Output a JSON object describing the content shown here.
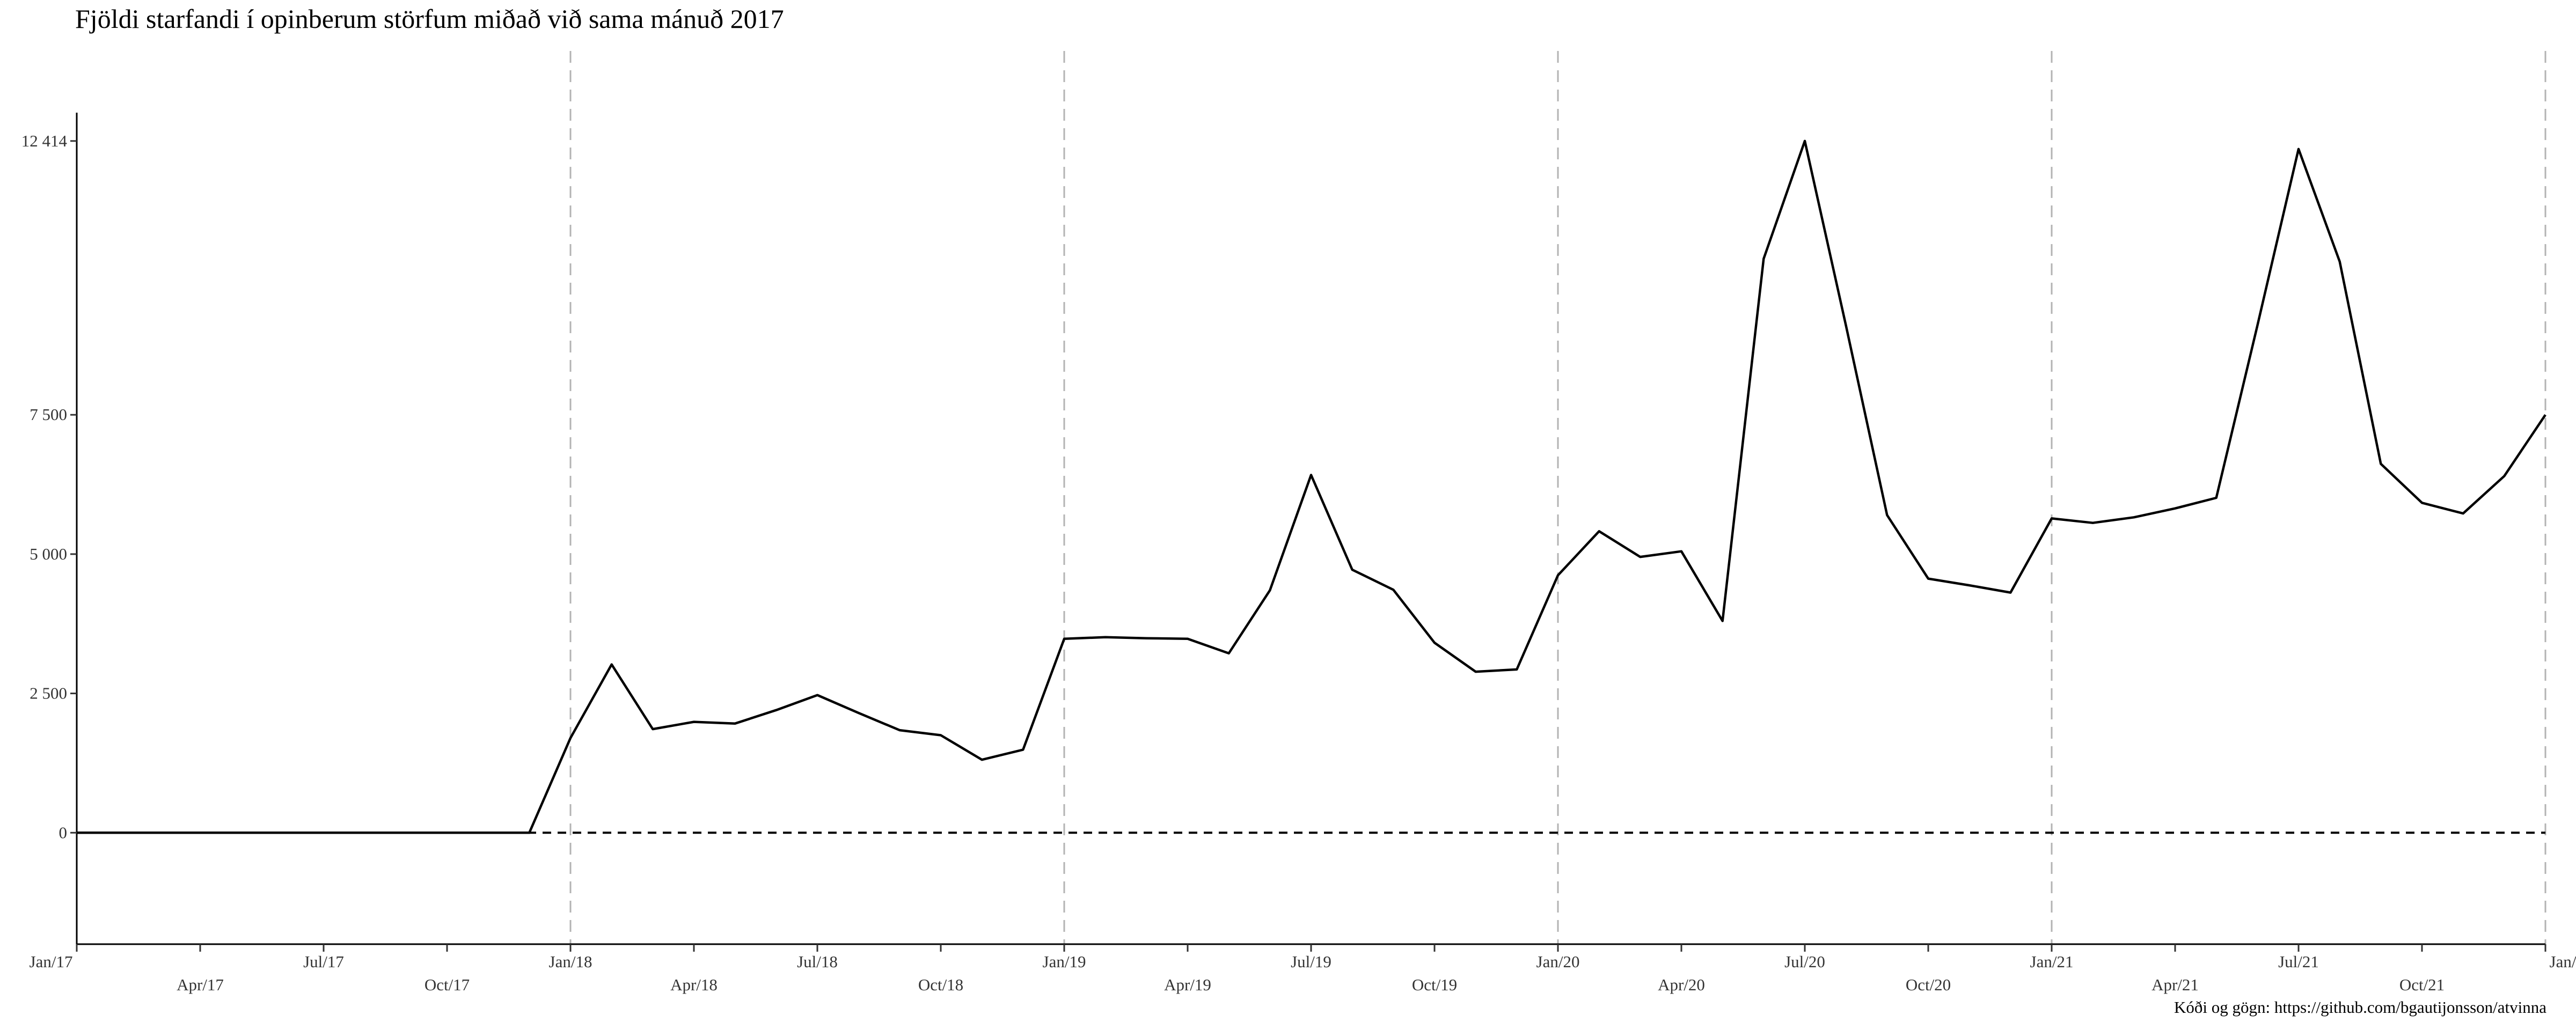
{
  "chart_data": {
    "type": "line",
    "title": "Fjöldi starfandi í opinberum störfum miðað við sama mánuð 2017",
    "caption": "Kóði og gögn: https://github.com/bgautijonsson/atvinna",
    "xlabel": "",
    "ylabel": "",
    "x_range": [
      "2017-01",
      "2022-01"
    ],
    "ylim": [
      -2000,
      13500
    ],
    "y_ticks": [
      0,
      2500,
      5000,
      7500,
      12414
    ],
    "y_tick_labels": [
      "0",
      "2 500",
      "5 000",
      "7 500",
      "12 414"
    ],
    "x_ticks": [
      {
        "date": "2017-01",
        "label": "Jan/17",
        "row": 1
      },
      {
        "date": "2017-04",
        "label": "Apr/17",
        "row": 2
      },
      {
        "date": "2017-07",
        "label": "Jul/17",
        "row": 1
      },
      {
        "date": "2017-10",
        "label": "Oct/17",
        "row": 2
      },
      {
        "date": "2018-01",
        "label": "Jan/18",
        "row": 1
      },
      {
        "date": "2018-04",
        "label": "Apr/18",
        "row": 2
      },
      {
        "date": "2018-07",
        "label": "Jul/18",
        "row": 1
      },
      {
        "date": "2018-10",
        "label": "Oct/18",
        "row": 2
      },
      {
        "date": "2019-01",
        "label": "Jan/19",
        "row": 1
      },
      {
        "date": "2019-04",
        "label": "Apr/19",
        "row": 2
      },
      {
        "date": "2019-07",
        "label": "Jul/19",
        "row": 1
      },
      {
        "date": "2019-10",
        "label": "Oct/19",
        "row": 2
      },
      {
        "date": "2020-01",
        "label": "Jan/20",
        "row": 1
      },
      {
        "date": "2020-04",
        "label": "Apr/20",
        "row": 2
      },
      {
        "date": "2020-07",
        "label": "Jul/20",
        "row": 1
      },
      {
        "date": "2020-10",
        "label": "Oct/20",
        "row": 2
      },
      {
        "date": "2021-01",
        "label": "Jan/21",
        "row": 1
      },
      {
        "date": "2021-04",
        "label": "Apr/21",
        "row": 2
      },
      {
        "date": "2021-07",
        "label": "Jul/21",
        "row": 1
      },
      {
        "date": "2021-10",
        "label": "Oct/21",
        "row": 2
      },
      {
        "date": "2022-01",
        "label": "Jan/22",
        "row": 1
      }
    ],
    "vlines": [
      "2018-01",
      "2019-01",
      "2020-01",
      "2021-01",
      "2022-01"
    ],
    "hline": 0,
    "grid": false,
    "series": [
      {
        "x": [
          "2017-01",
          "2017-02",
          "2017-03",
          "2017-04",
          "2017-05",
          "2017-06",
          "2017-07",
          "2017-08",
          "2017-09",
          "2017-10",
          "2017-11",
          "2017-12",
          "2018-01",
          "2018-02",
          "2018-03",
          "2018-04",
          "2018-05",
          "2018-06",
          "2018-07",
          "2018-08",
          "2018-09",
          "2018-10",
          "2018-11",
          "2018-12",
          "2019-01",
          "2019-02",
          "2019-03",
          "2019-04",
          "2019-05",
          "2019-06",
          "2019-07",
          "2019-08",
          "2019-09",
          "2019-10",
          "2019-11",
          "2019-12",
          "2020-01",
          "2020-02",
          "2020-03",
          "2020-04",
          "2020-05",
          "2020-06",
          "2020-07",
          "2020-08",
          "2020-09",
          "2020-10",
          "2020-11",
          "2020-12",
          "2021-01",
          "2021-02",
          "2021-03",
          "2021-04",
          "2021-05",
          "2021-06",
          "2021-07",
          "2021-08",
          "2021-09",
          "2021-10",
          "2021-11",
          "2021-12",
          "2022-01"
        ],
        "values": [
          0,
          0,
          0,
          0,
          0,
          0,
          0,
          0,
          0,
          0,
          0,
          0,
          1700,
          3020,
          1860,
          1990,
          1960,
          2200,
          2470,
          2150,
          1840,
          1750,
          1310,
          1490,
          3480,
          3510,
          3490,
          3480,
          3220,
          4350,
          6420,
          4720,
          4360,
          3410,
          2890,
          2930,
          4620,
          5410,
          4950,
          5050,
          3800,
          10300,
          12414,
          9100,
          5700,
          4560,
          4440,
          4310,
          5640,
          5560,
          5660,
          5820,
          6010,
          9100,
          12270,
          10250,
          6620,
          5920,
          5730,
          6400,
          7500
        ]
      }
    ]
  }
}
